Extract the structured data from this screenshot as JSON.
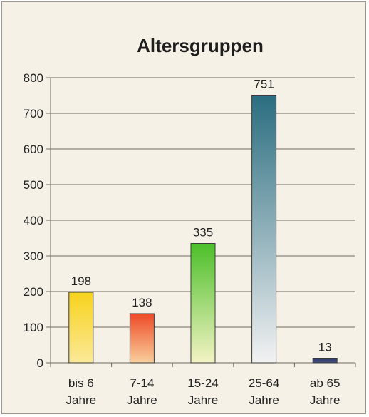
{
  "chart_data": {
    "type": "bar",
    "title": "Altersgruppen",
    "xlabel": "",
    "ylabel": "",
    "categories": [
      [
        "bis 6",
        "Jahre"
      ],
      [
        "7-14",
        "Jahre"
      ],
      [
        "15-24",
        "Jahre"
      ],
      [
        "25-64",
        "Jahre"
      ],
      [
        "ab 65",
        "Jahre"
      ]
    ],
    "values": [
      198,
      138,
      335,
      751,
      13
    ],
    "ylim": [
      0,
      800
    ],
    "yticks": [
      0,
      100,
      200,
      300,
      400,
      500,
      600,
      700,
      800
    ],
    "grid": true,
    "legend": "none",
    "bar_colors": [
      [
        "#f7d21c",
        "#fbe998"
      ],
      [
        "#ee4a28",
        "#f9cf9c"
      ],
      [
        "#4cbf2a",
        "#f3f3c4"
      ],
      [
        "#2a6d80",
        "#f2f2f2"
      ],
      [
        "#2e3a6e",
        "#44507e"
      ]
    ]
  }
}
